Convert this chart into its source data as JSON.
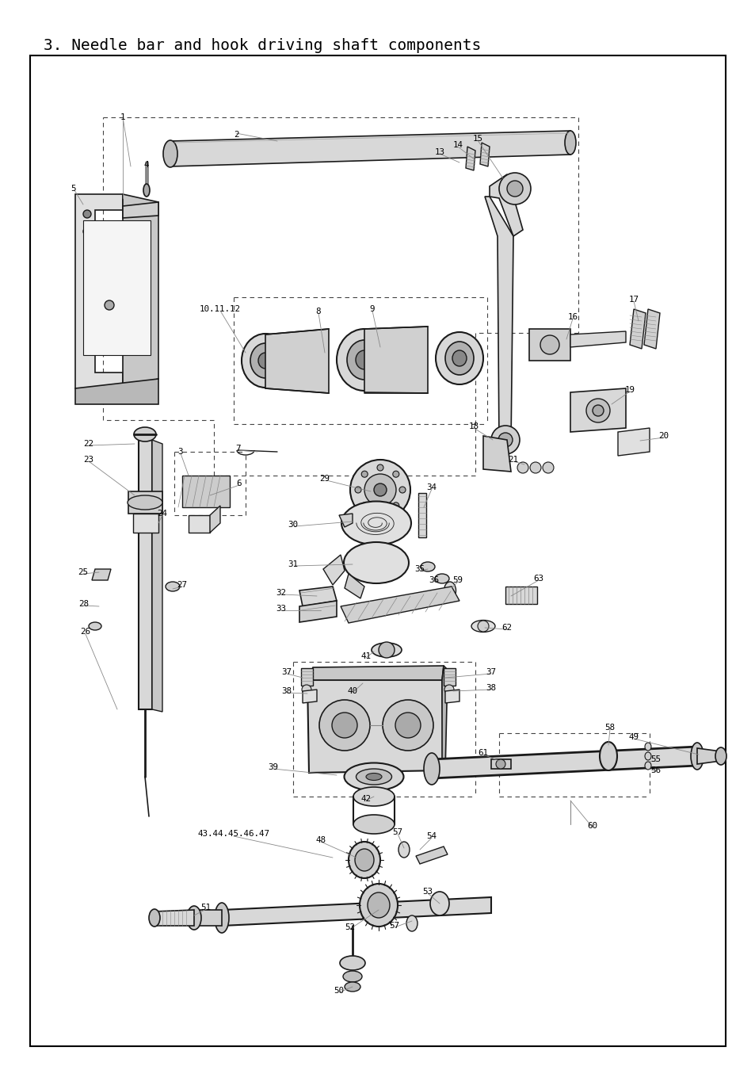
{
  "title": "3. Needle bar and hook driving shaft components",
  "bg_color": "#ffffff",
  "border_color": "#000000",
  "fig_width": 9.54,
  "fig_height": 13.5,
  "dpi": 100,
  "line_color": "#1a1a1a",
  "text_color": "#000000"
}
